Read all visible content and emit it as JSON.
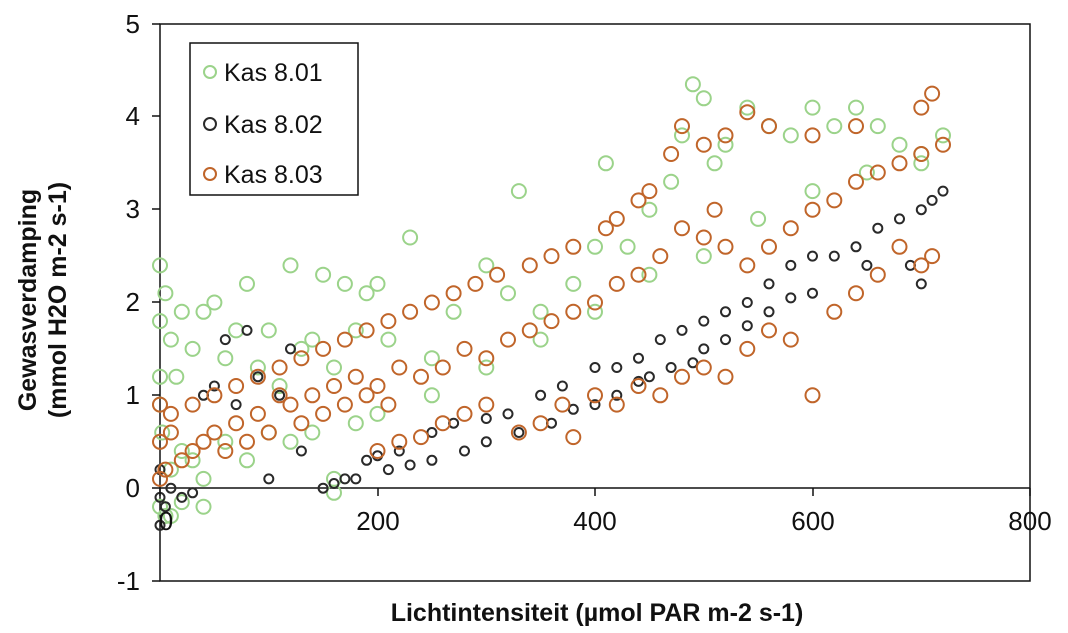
{
  "chart_data": {
    "type": "scatter",
    "xlabel": "Lichtintensiteit (µmol PAR m-2 s-1)",
    "ylabel_line1": "Gewasverdamping",
    "ylabel_line2": "(mmol H2O m-2 s-1)",
    "xlim": [
      0,
      800
    ],
    "ylim": [
      -1,
      5
    ],
    "x_ticks": [
      "0",
      "200",
      "400",
      "600",
      "800"
    ],
    "y_ticks": [
      "-1",
      "0",
      "1",
      "2",
      "3",
      "4",
      "5"
    ],
    "grid": false,
    "legend_position": "top-left",
    "series": [
      {
        "name": "Kas 8.01",
        "color": "#9bd38a",
        "marker": "open-circle",
        "points": [
          [
            0,
            2.4
          ],
          [
            0,
            1.8
          ],
          [
            0,
            1.2
          ],
          [
            0,
            0.9
          ],
          [
            2,
            0.6
          ],
          [
            5,
            2.1
          ],
          [
            10,
            1.6
          ],
          [
            15,
            1.2
          ],
          [
            20,
            1.9
          ],
          [
            30,
            1.5
          ],
          [
            40,
            1.9
          ],
          [
            50,
            2.0
          ],
          [
            60,
            1.4
          ],
          [
            70,
            1.7
          ],
          [
            80,
            2.2
          ],
          [
            90,
            1.3
          ],
          [
            100,
            1.7
          ],
          [
            110,
            1.1
          ],
          [
            120,
            2.4
          ],
          [
            130,
            1.5
          ],
          [
            140,
            1.6
          ],
          [
            150,
            2.3
          ],
          [
            160,
            1.3
          ],
          [
            170,
            2.2
          ],
          [
            180,
            1.7
          ],
          [
            190,
            2.1
          ],
          [
            200,
            2.2
          ],
          [
            210,
            1.6
          ],
          [
            230,
            2.7
          ],
          [
            250,
            1.4
          ],
          [
            270,
            1.9
          ],
          [
            300,
            2.4
          ],
          [
            320,
            2.1
          ],
          [
            330,
            3.2
          ],
          [
            350,
            1.9
          ],
          [
            380,
            2.2
          ],
          [
            400,
            2.6
          ],
          [
            410,
            3.5
          ],
          [
            430,
            2.6
          ],
          [
            450,
            3.0
          ],
          [
            470,
            3.3
          ],
          [
            480,
            3.8
          ],
          [
            490,
            4.35
          ],
          [
            500,
            4.2
          ],
          [
            510,
            3.5
          ],
          [
            520,
            3.7
          ],
          [
            540,
            4.1
          ],
          [
            560,
            3.9
          ],
          [
            580,
            3.8
          ],
          [
            600,
            4.1
          ],
          [
            620,
            3.9
          ],
          [
            640,
            4.1
          ],
          [
            660,
            3.9
          ],
          [
            680,
            3.7
          ],
          [
            700,
            3.5
          ],
          [
            720,
            3.8
          ],
          [
            10,
            0.2
          ],
          [
            20,
            0.4
          ],
          [
            30,
            0.3
          ],
          [
            40,
            0.1
          ],
          [
            60,
            0.5
          ],
          [
            80,
            0.3
          ],
          [
            100,
            0.6
          ],
          [
            120,
            0.5
          ],
          [
            140,
            0.6
          ],
          [
            160,
            0.1
          ],
          [
            180,
            0.7
          ],
          [
            200,
            0.8
          ],
          [
            250,
            1.0
          ],
          [
            300,
            1.3
          ],
          [
            350,
            1.6
          ],
          [
            400,
            1.9
          ],
          [
            450,
            2.3
          ],
          [
            500,
            2.5
          ],
          [
            550,
            2.9
          ],
          [
            600,
            3.2
          ],
          [
            650,
            3.4
          ],
          [
            700,
            3.6
          ],
          [
            0,
            -0.2
          ],
          [
            10,
            -0.3
          ],
          [
            20,
            -0.15
          ],
          [
            40,
            -0.2
          ],
          [
            160,
            -0.05
          ],
          [
            5,
            -0.3
          ]
        ]
      },
      {
        "name": "Kas 8.02",
        "color": "#2a2a2a",
        "marker": "open-circle",
        "points": [
          [
            0,
            0.2
          ],
          [
            0,
            -0.1
          ],
          [
            0,
            -0.4
          ],
          [
            5,
            -0.2
          ],
          [
            10,
            0.0
          ],
          [
            20,
            -0.1
          ],
          [
            30,
            -0.05
          ],
          [
            40,
            1.0
          ],
          [
            50,
            1.1
          ],
          [
            60,
            1.6
          ],
          [
            70,
            0.9
          ],
          [
            80,
            1.7
          ],
          [
            90,
            1.2
          ],
          [
            100,
            0.1
          ],
          [
            110,
            1.0
          ],
          [
            120,
            1.5
          ],
          [
            130,
            0.4
          ],
          [
            150,
            0.0
          ],
          [
            170,
            0.1
          ],
          [
            190,
            0.3
          ],
          [
            200,
            0.35
          ],
          [
            220,
            0.4
          ],
          [
            250,
            0.6
          ],
          [
            270,
            0.7
          ],
          [
            300,
            0.75
          ],
          [
            320,
            0.8
          ],
          [
            350,
            1.0
          ],
          [
            370,
            1.1
          ],
          [
            400,
            1.3
          ],
          [
            420,
            1.3
          ],
          [
            440,
            1.4
          ],
          [
            460,
            1.6
          ],
          [
            480,
            1.7
          ],
          [
            500,
            1.8
          ],
          [
            520,
            1.9
          ],
          [
            540,
            2.0
          ],
          [
            560,
            2.2
          ],
          [
            580,
            2.4
          ],
          [
            600,
            2.5
          ],
          [
            620,
            2.5
          ],
          [
            640,
            2.6
          ],
          [
            660,
            2.8
          ],
          [
            680,
            2.9
          ],
          [
            700,
            3.0
          ],
          [
            710,
            3.1
          ],
          [
            720,
            3.2
          ],
          [
            650,
            2.4
          ],
          [
            690,
            2.4
          ],
          [
            700,
            2.2
          ],
          [
            600,
            2.1
          ],
          [
            580,
            2.05
          ],
          [
            560,
            1.9
          ],
          [
            540,
            1.75
          ],
          [
            520,
            1.6
          ],
          [
            500,
            1.5
          ],
          [
            490,
            1.35
          ],
          [
            470,
            1.3
          ],
          [
            450,
            1.2
          ],
          [
            440,
            1.15
          ],
          [
            420,
            1.0
          ],
          [
            400,
            0.9
          ],
          [
            380,
            0.85
          ],
          [
            360,
            0.7
          ],
          [
            330,
            0.6
          ],
          [
            300,
            0.5
          ],
          [
            280,
            0.4
          ],
          [
            250,
            0.3
          ],
          [
            230,
            0.25
          ],
          [
            210,
            0.2
          ],
          [
            180,
            0.1
          ],
          [
            160,
            0.05
          ]
        ]
      },
      {
        "name": "Kas 8.03",
        "color": "#c0652a",
        "marker": "open-circle",
        "points": [
          [
            0,
            0.1
          ],
          [
            0,
            0.5
          ],
          [
            0,
            0.9
          ],
          [
            5,
            0.2
          ],
          [
            10,
            0.6
          ],
          [
            20,
            0.3
          ],
          [
            30,
            0.4
          ],
          [
            40,
            0.5
          ],
          [
            50,
            0.6
          ],
          [
            60,
            0.4
          ],
          [
            70,
            0.7
          ],
          [
            80,
            0.5
          ],
          [
            90,
            0.8
          ],
          [
            100,
            0.6
          ],
          [
            110,
            1.0
          ],
          [
            120,
            0.9
          ],
          [
            130,
            0.7
          ],
          [
            140,
            1.0
          ],
          [
            150,
            0.8
          ],
          [
            160,
            1.1
          ],
          [
            170,
            0.9
          ],
          [
            180,
            1.2
          ],
          [
            190,
            1.0
          ],
          [
            200,
            1.1
          ],
          [
            210,
            0.9
          ],
          [
            220,
            1.3
          ],
          [
            240,
            1.2
          ],
          [
            260,
            1.3
          ],
          [
            280,
            1.5
          ],
          [
            300,
            1.4
          ],
          [
            320,
            1.6
          ],
          [
            340,
            1.7
          ],
          [
            360,
            1.8
          ],
          [
            380,
            1.9
          ],
          [
            400,
            2.0
          ],
          [
            420,
            2.2
          ],
          [
            440,
            2.3
          ],
          [
            460,
            2.5
          ],
          [
            480,
            2.8
          ],
          [
            500,
            2.7
          ],
          [
            510,
            3.0
          ],
          [
            520,
            2.6
          ],
          [
            540,
            2.4
          ],
          [
            560,
            2.6
          ],
          [
            580,
            2.8
          ],
          [
            600,
            3.0
          ],
          [
            620,
            3.1
          ],
          [
            640,
            3.3
          ],
          [
            660,
            3.4
          ],
          [
            680,
            3.5
          ],
          [
            700,
            3.6
          ],
          [
            720,
            3.7
          ],
          [
            710,
            4.25
          ],
          [
            700,
            4.1
          ],
          [
            640,
            3.9
          ],
          [
            600,
            3.8
          ],
          [
            560,
            3.9
          ],
          [
            540,
            4.05
          ],
          [
            520,
            3.8
          ],
          [
            500,
            3.7
          ],
          [
            480,
            3.9
          ],
          [
            470,
            3.6
          ],
          [
            450,
            3.2
          ],
          [
            440,
            3.1
          ],
          [
            420,
            2.9
          ],
          [
            410,
            2.8
          ],
          [
            380,
            2.6
          ],
          [
            360,
            2.5
          ],
          [
            340,
            2.4
          ],
          [
            310,
            2.3
          ],
          [
            290,
            2.2
          ],
          [
            270,
            2.1
          ],
          [
            250,
            2.0
          ],
          [
            230,
            1.9
          ],
          [
            210,
            1.8
          ],
          [
            190,
            1.7
          ],
          [
            170,
            1.6
          ],
          [
            150,
            1.5
          ],
          [
            130,
            1.4
          ],
          [
            110,
            1.3
          ],
          [
            90,
            1.2
          ],
          [
            70,
            1.1
          ],
          [
            50,
            1.0
          ],
          [
            30,
            0.9
          ],
          [
            10,
            0.8
          ],
          [
            200,
            0.4
          ],
          [
            220,
            0.5
          ],
          [
            240,
            0.55
          ],
          [
            260,
            0.7
          ],
          [
            280,
            0.8
          ],
          [
            300,
            0.9
          ],
          [
            330,
            0.6
          ],
          [
            350,
            0.7
          ],
          [
            370,
            0.9
          ],
          [
            380,
            0.55
          ],
          [
            400,
            1.0
          ],
          [
            420,
            0.9
          ],
          [
            440,
            1.1
          ],
          [
            460,
            1.0
          ],
          [
            480,
            1.2
          ],
          [
            500,
            1.3
          ],
          [
            520,
            1.2
          ],
          [
            540,
            1.5
          ],
          [
            560,
            1.7
          ],
          [
            580,
            1.6
          ],
          [
            600,
            1.0
          ],
          [
            620,
            1.9
          ],
          [
            640,
            2.1
          ],
          [
            660,
            2.3
          ],
          [
            680,
            2.6
          ],
          [
            700,
            2.4
          ],
          [
            710,
            2.5
          ]
        ]
      }
    ]
  }
}
